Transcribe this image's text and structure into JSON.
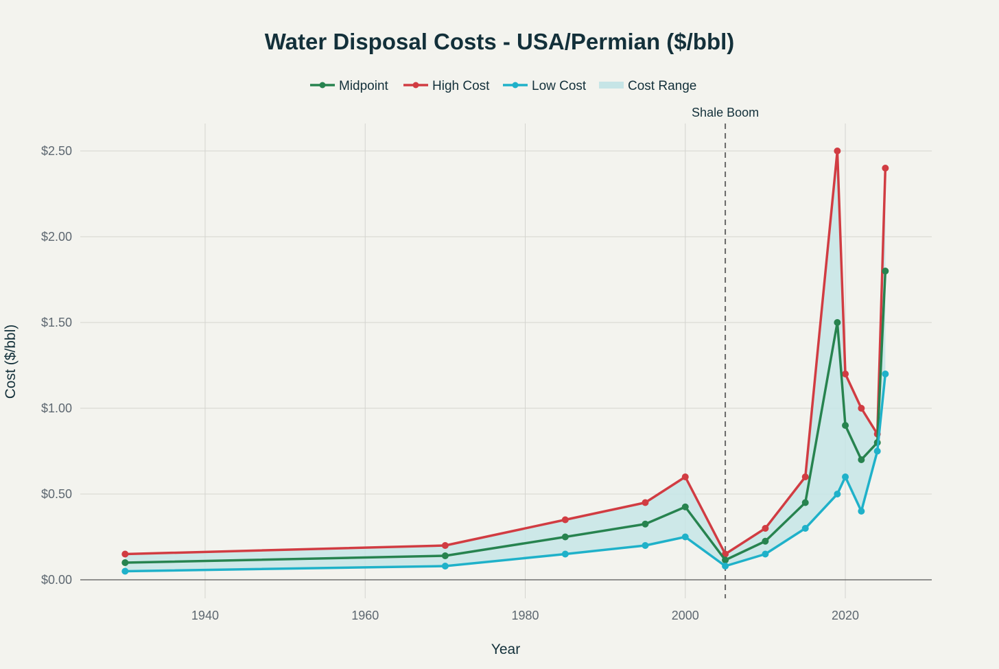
{
  "chart_data": {
    "type": "line",
    "title": "Water Disposal Costs - USA/Permian ($/bbl)",
    "xlabel": "Year",
    "ylabel": "Cost ($/bbl)",
    "xlim": [
      1924.4,
      2030.8
    ],
    "ylim": [
      -0.108,
      2.66
    ],
    "x_ticks": [
      1940,
      1960,
      1980,
      2000,
      2020
    ],
    "x_tick_labels": [
      "1940",
      "1960",
      "1980",
      "2000",
      "2020"
    ],
    "y_ticks": [
      0,
      0.5,
      1,
      1.5,
      2,
      2.5
    ],
    "y_tick_labels": [
      "$0.00",
      "$0.50",
      "$1.00",
      "$1.50",
      "$2.00",
      "$2.50"
    ],
    "grid": true,
    "legend_position": "top-center",
    "x": [
      1930,
      1970,
      1985,
      1995,
      2000,
      2005,
      2010,
      2015,
      2019,
      2020,
      2022,
      2024,
      2025
    ],
    "series": [
      {
        "name": "Midpoint",
        "color": "#27834f",
        "values": [
          0.1,
          0.14,
          0.25,
          0.325,
          0.425,
          0.115,
          0.225,
          0.45,
          1.5,
          0.9,
          0.7,
          0.8,
          1.8
        ]
      },
      {
        "name": "High Cost",
        "color": "#d13c42",
        "values": [
          0.15,
          0.2,
          0.35,
          0.45,
          0.6,
          0.15,
          0.3,
          0.6,
          2.5,
          1.2,
          1.0,
          0.85,
          2.4
        ]
      },
      {
        "name": "Low Cost",
        "color": "#1fb1c9",
        "values": [
          0.05,
          0.08,
          0.15,
          0.2,
          0.25,
          0.08,
          0.15,
          0.3,
          0.5,
          0.6,
          0.4,
          0.75,
          1.2
        ]
      }
    ],
    "range_band": {
      "name": "Cost Range",
      "color": "#c6e5e6"
    },
    "annotations": [
      {
        "x": 2005,
        "text": "Shale Boom",
        "style": "dashed-vertical-line"
      }
    ]
  }
}
